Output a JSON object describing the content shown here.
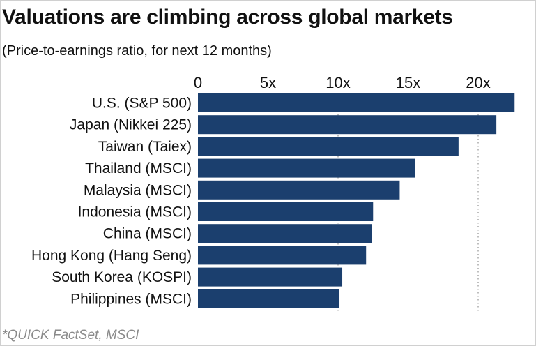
{
  "title": "Valuations are climbing across global markets",
  "subtitle": "(Price-to-earnings ratio, for next 12 months)",
  "source": "*QUICK FactSet, MSCI",
  "colors": {
    "bar": "#1b3f6e",
    "grid": "#7d7d7d"
  },
  "chart_data": {
    "type": "bar",
    "orientation": "horizontal",
    "categories": [
      "U.S. (S&P 500)",
      "Japan (Nikkei 225)",
      "Taiwan (Taiex)",
      "Thailand (MSCI)",
      "Malaysia (MSCI)",
      "Indonesia (MSCI)",
      "China (MSCI)",
      "Hong Kong (Hang Seng)",
      "South Korea (KOSPI)",
      "Philippines (MSCI)"
    ],
    "values": [
      22.6,
      21.3,
      18.6,
      15.5,
      14.4,
      12.5,
      12.4,
      12.0,
      10.3,
      10.1
    ],
    "xlim": [
      0,
      23
    ],
    "xticks": [
      0,
      5,
      10,
      15,
      20
    ],
    "xtick_labels": [
      "0",
      "5x",
      "10x",
      "15x",
      "20x"
    ],
    "axis_position": "top",
    "grid": "vertical dotted",
    "legend": "none"
  }
}
